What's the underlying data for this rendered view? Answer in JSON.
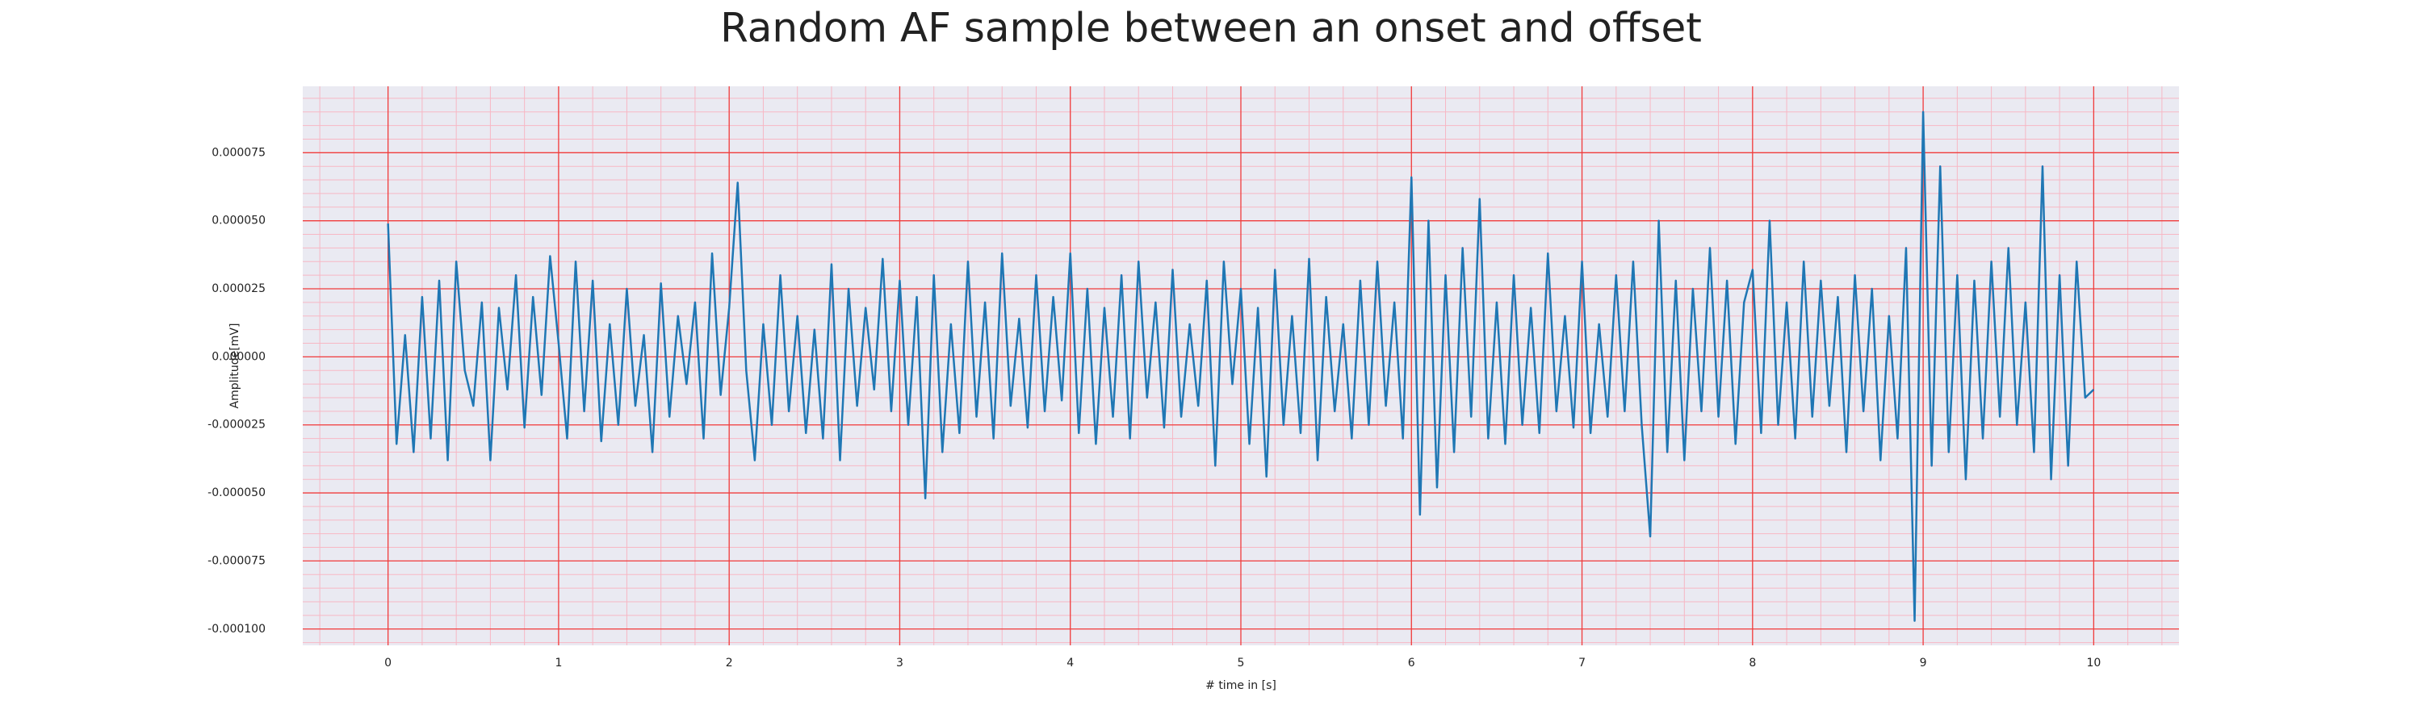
{
  "chart_data": {
    "type": "line",
    "title": "Random AF sample between an onset and offset",
    "xlabel": "# time in [s]",
    "ylabel": "Amplitude[mV]",
    "x": [
      0,
      0.05,
      0.1,
      0.15,
      0.2,
      0.25,
      0.3,
      0.35,
      0.4,
      0.45,
      0.5,
      0.55,
      0.6,
      0.65,
      0.7,
      0.75,
      0.8,
      0.85,
      0.9,
      0.95,
      1,
      1.05,
      1.1,
      1.15,
      1.2,
      1.25,
      1.3,
      1.35,
      1.4,
      1.45,
      1.5,
      1.55,
      1.6,
      1.65,
      1.7,
      1.75,
      1.8,
      1.85,
      1.9,
      1.95,
      2,
      2.05,
      2.1,
      2.15,
      2.2,
      2.25,
      2.3,
      2.35,
      2.4,
      2.45,
      2.5,
      2.55,
      2.6,
      2.65,
      2.7,
      2.75,
      2.8,
      2.85,
      2.9,
      2.95,
      3,
      3.05,
      3.1,
      3.15,
      3.2,
      3.25,
      3.3,
      3.35,
      3.4,
      3.45,
      3.5,
      3.55,
      3.6,
      3.65,
      3.7,
      3.75,
      3.8,
      3.85,
      3.9,
      3.95,
      4,
      4.05,
      4.1,
      4.15,
      4.2,
      4.25,
      4.3,
      4.35,
      4.4,
      4.45,
      4.5,
      4.55,
      4.6,
      4.65,
      4.7,
      4.75,
      4.8,
      4.85,
      4.9,
      4.95,
      5,
      5.05,
      5.1,
      5.15,
      5.2,
      5.25,
      5.3,
      5.35,
      5.4,
      5.45,
      5.5,
      5.55,
      5.6,
      5.65,
      5.7,
      5.75,
      5.8,
      5.85,
      5.9,
      5.95,
      6,
      6.05,
      6.1,
      6.15,
      6.2,
      6.25,
      6.3,
      6.35,
      6.4,
      6.45,
      6.5,
      6.55,
      6.6,
      6.65,
      6.7,
      6.75,
      6.8,
      6.85,
      6.9,
      6.95,
      7,
      7.05,
      7.1,
      7.15,
      7.2,
      7.25,
      7.3,
      7.35,
      7.4,
      7.45,
      7.5,
      7.55,
      7.6,
      7.65,
      7.7,
      7.75,
      7.8,
      7.85,
      7.9,
      7.95,
      8,
      8.05,
      8.1,
      8.15,
      8.2,
      8.25,
      8.3,
      8.35,
      8.4,
      8.45,
      8.5,
      8.55,
      8.6,
      8.65,
      8.7,
      8.75,
      8.8,
      8.85,
      8.9,
      8.95,
      9,
      9.05,
      9.1,
      9.15,
      9.2,
      9.25,
      9.3,
      9.35,
      9.4,
      9.45,
      9.5,
      9.55,
      9.6,
      9.65,
      9.7,
      9.75,
      9.8,
      9.85,
      9.9,
      9.95,
      10
    ],
    "series": [
      {
        "color": "#1f77b4",
        "values": [
          4.9e-05,
          -3.2e-05,
          8e-06,
          -3.5e-05,
          2.2e-05,
          -3e-05,
          2.8e-05,
          -3.8e-05,
          3.5e-05,
          -5e-06,
          -1.8e-05,
          2e-05,
          -3.8e-05,
          1.8e-05,
          -1.2e-05,
          3e-05,
          -2.6e-05,
          2.2e-05,
          -1.4e-05,
          3.7e-05,
          5e-06,
          -3e-05,
          3.5e-05,
          -2e-05,
          2.8e-05,
          -3.1e-05,
          1.2e-05,
          -2.5e-05,
          2.5e-05,
          -1.8e-05,
          8e-06,
          -3.5e-05,
          2.7e-05,
          -2.2e-05,
          1.5e-05,
          -1e-05,
          2e-05,
          -3e-05,
          3.8e-05,
          -1.4e-05,
          1.8e-05,
          6.4e-05,
          -5e-06,
          -3.8e-05,
          1.2e-05,
          -2.5e-05,
          3e-05,
          -2e-05,
          1.5e-05,
          -2.8e-05,
          1e-05,
          -3e-05,
          3.4e-05,
          -3.8e-05,
          2.5e-05,
          -1.8e-05,
          1.8e-05,
          -1.2e-05,
          3.6e-05,
          -2e-05,
          2.8e-05,
          -2.5e-05,
          2.2e-05,
          -5.2e-05,
          3e-05,
          -3.5e-05,
          1.2e-05,
          -2.8e-05,
          3.5e-05,
          -2.2e-05,
          2e-05,
          -3e-05,
          3.8e-05,
          -1.8e-05,
          1.4e-05,
          -2.6e-05,
          3e-05,
          -2e-05,
          2.2e-05,
          -1.6e-05,
          3.8e-05,
          -2.8e-05,
          2.5e-05,
          -3.2e-05,
          1.8e-05,
          -2.2e-05,
          3e-05,
          -3e-05,
          3.5e-05,
          -1.5e-05,
          2e-05,
          -2.6e-05,
          3.2e-05,
          -2.2e-05,
          1.2e-05,
          -1.8e-05,
          2.8e-05,
          -4e-05,
          3.5e-05,
          -1e-05,
          2.5e-05,
          -3.2e-05,
          1.8e-05,
          -4.4e-05,
          3.2e-05,
          -2.5e-05,
          1.5e-05,
          -2.8e-05,
          3.6e-05,
          -3.8e-05,
          2.2e-05,
          -2e-05,
          1.2e-05,
          -3e-05,
          2.8e-05,
          -2.5e-05,
          3.5e-05,
          -1.8e-05,
          2e-05,
          -3e-05,
          6.6e-05,
          -5.8e-05,
          5e-05,
          -4.8e-05,
          3e-05,
          -3.5e-05,
          4e-05,
          -2.2e-05,
          5.8e-05,
          -3e-05,
          2e-05,
          -3.2e-05,
          3e-05,
          -2.5e-05,
          1.8e-05,
          -2.8e-05,
          3.8e-05,
          -2e-05,
          1.5e-05,
          -2.6e-05,
          3.5e-05,
          -2.8e-05,
          1.2e-05,
          -2.2e-05,
          3e-05,
          -2e-05,
          3.5e-05,
          -2.5e-05,
          -6.6e-05,
          5e-05,
          -3.5e-05,
          2.8e-05,
          -3.8e-05,
          2.5e-05,
          -2e-05,
          4e-05,
          -2.2e-05,
          2.8e-05,
          -3.2e-05,
          2e-05,
          3.2e-05,
          -2.8e-05,
          5e-05,
          -2.5e-05,
          2e-05,
          -3e-05,
          3.5e-05,
          -2.2e-05,
          2.8e-05,
          -1.8e-05,
          2.2e-05,
          -3.5e-05,
          3e-05,
          -2e-05,
          2.5e-05,
          -3.8e-05,
          1.5e-05,
          -3e-05,
          4e-05,
          -9.7e-05,
          9e-05,
          -4e-05,
          7e-05,
          -3.5e-05,
          3e-05,
          -4.5e-05,
          2.8e-05,
          -3e-05,
          3.5e-05,
          -2.2e-05,
          4e-05,
          -2.5e-05,
          2e-05,
          -3.5e-05,
          7e-05,
          -4.5e-05,
          3e-05,
          -4e-05,
          3.5e-05,
          -1.5e-05,
          -1.2e-05
        ]
      }
    ],
    "xlim": [
      -0.5,
      10.5
    ],
    "ylim": [
      -0.000106,
      9.94e-05
    ],
    "xticks": [
      0,
      1,
      2,
      3,
      4,
      5,
      6,
      7,
      8,
      9,
      10
    ],
    "yticks": [
      {
        "value": 7.5e-05,
        "label": "0.000075"
      },
      {
        "value": 5e-05,
        "label": "0.000050"
      },
      {
        "value": 2.5e-05,
        "label": "0.000025"
      },
      {
        "value": 0,
        "label": "0.000000"
      },
      {
        "value": -2.5e-05,
        "label": "-0.000025"
      },
      {
        "value": -5e-05,
        "label": "-0.000050"
      },
      {
        "value": -7.5e-05,
        "label": "-0.000075"
      },
      {
        "value": -0.0001,
        "label": "-0.000100"
      }
    ],
    "grid": true,
    "minor_grid": true
  }
}
